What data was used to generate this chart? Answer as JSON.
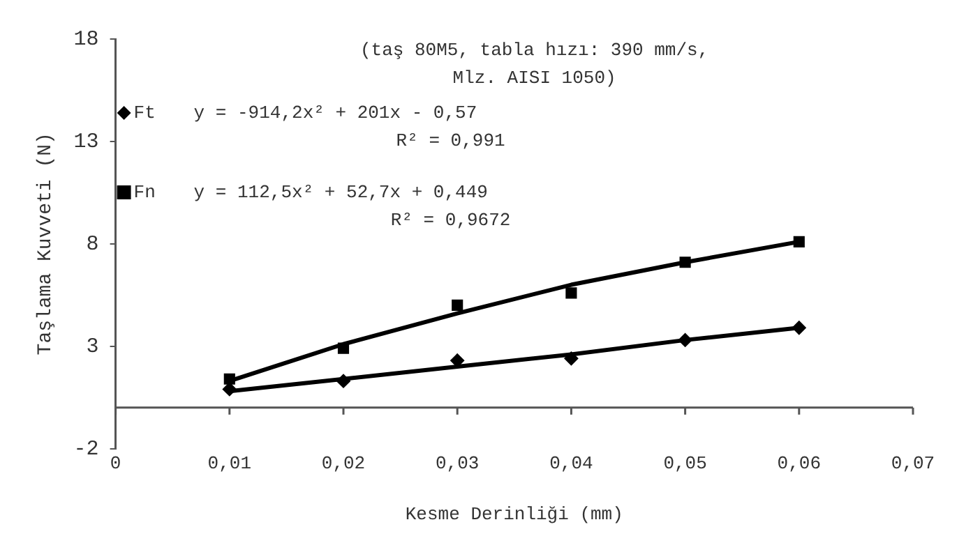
{
  "chart_data": {
    "type": "scatter",
    "xlabel": "Kesme Derinliği (mm)",
    "ylabel": "Taşlama Kuvveti (N)",
    "x": [
      0.01,
      0.02,
      0.03,
      0.04,
      0.05,
      0.06
    ],
    "series": [
      {
        "name": "Ft",
        "type": "scatter",
        "marker": "diamond",
        "color": "#000000",
        "values": [
          0.9,
          1.3,
          2.3,
          2.4,
          3.3,
          3.9
        ]
      },
      {
        "name": "Fn",
        "type": "scatter",
        "marker": "square",
        "color": "#000000",
        "values": [
          1.4,
          2.9,
          5.0,
          5.6,
          7.1,
          8.1
        ]
      },
      {
        "type": "line",
        "marker": "none",
        "color": "#000000",
        "values": [
          0.8,
          1.4,
          2.0,
          2.6,
          3.3,
          3.9
        ]
      },
      {
        "type": "line",
        "marker": "none",
        "color": "#000000",
        "values": [
          1.3,
          3.1,
          4.6,
          6.0,
          7.1,
          8.1
        ]
      }
    ],
    "xlim": [
      0,
      0.07
    ],
    "xticks": [
      {
        "value": 0,
        "label": "0"
      },
      {
        "value": 0.01,
        "label": "0,01"
      },
      {
        "value": 0.02,
        "label": "0,02"
      },
      {
        "value": 0.03,
        "label": "0,03"
      },
      {
        "value": 0.04,
        "label": "0,04"
      },
      {
        "value": 0.05,
        "label": "0,05"
      },
      {
        "value": 0.06,
        "label": "0,06"
      },
      {
        "value": 0.07,
        "label": "0,07"
      }
    ],
    "ylim": [
      -2,
      18
    ],
    "yticks": [
      -2,
      3,
      8,
      13,
      18
    ],
    "grid": false,
    "legend": "top left",
    "annotations": [
      "(taş 80M5, tabla hızı: 390 mm/s,\nMlz. AISI 1050)",
      "y = -914,2x² + 201x - 0,57",
      "R² = 0,991",
      "y = 112,5x² + 52,7x + 0,449",
      "R² = 0,9672"
    ]
  }
}
